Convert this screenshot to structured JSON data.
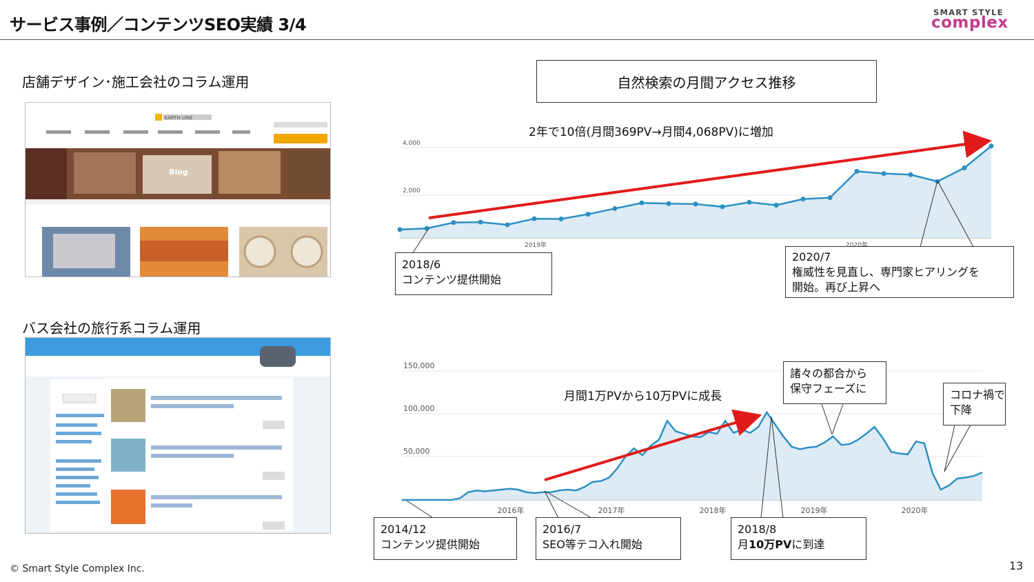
{
  "header": {
    "title": "サービス事例／コンテンツSEO実績 3/4",
    "logo_top": "SMART STYLE",
    "logo_main": "complex"
  },
  "left": {
    "case1_title": "店舗デザイン･施工会社のコラム運用",
    "case1_shot_caption": "Blog",
    "case1_shot_brand": "EARTH LINE",
    "case2_title": "バス会社の旅行系コラム運用"
  },
  "chart1": {
    "header_box": "自然検索の月間アクセス推移",
    "subtitle": "2年で10倍(月間369PV→月間4,068PV)に増加",
    "callout1_line1": "2018/6",
    "callout1_line2": "コンテンツ提供開始",
    "callout2_line1": "2020/7",
    "callout2_line2": "権威性を見直し、専門家ヒアリングを",
    "callout2_line3": "開始。再び上昇へ"
  },
  "chart2": {
    "subtitle": "月間1万PVから10万PVに成長",
    "callout1_line1": "2014/12",
    "callout1_line2": "コンテンツ提供開始",
    "callout2_line1": "2016/7",
    "callout2_line2": "SEO等テコ入れ開始",
    "callout3_line1": "2018/8",
    "callout3_line2_a": "月",
    "callout3_line2_b": "10万PV",
    "callout3_line2_c": "に到達",
    "callout4_line1": "諸々の都合から",
    "callout4_line2": "保守フェーズに",
    "callout5_line1": "コロナ禍で",
    "callout5_line2": "下降"
  },
  "footer": {
    "copyright": "© Smart Style Complex Inc.",
    "page_number": "13"
  },
  "colors": {
    "line": "#2b8fc4",
    "fill": "#dcebf5",
    "arrow": "#e11b1b",
    "logo": "#c23b8f"
  },
  "chart_data": [
    {
      "type": "area",
      "title": "2年で10倍(月間369PV→月間4,068PV)に増加",
      "y_ticks": [
        "4,000",
        "2,000"
      ],
      "x_ticks": [
        "2019年",
        "2020年"
      ],
      "ylim": [
        0,
        4000
      ],
      "series": [
        {
          "values": [
            369,
            420,
            680,
            700,
            580,
            850,
            840,
            1050,
            1300,
            1550,
            1520,
            1500,
            1380,
            1580,
            1450,
            1720,
            1780,
            2950,
            2850,
            2800,
            2500,
            3100,
            4068
          ]
        }
      ]
    },
    {
      "type": "area",
      "title": "月間1万PVから10万PVに成長",
      "y_ticks": [
        "150,000",
        "100,000",
        "50,000"
      ],
      "x_ticks": [
        "2016年",
        "2017年",
        "2018年",
        "2019年",
        "2020年"
      ],
      "ylim": [
        0,
        150000
      ],
      "series": [
        {
          "values": [
            0,
            0,
            0,
            0,
            0,
            0,
            0,
            2000,
            9000,
            11000,
            10000,
            11000,
            12000,
            13000,
            12000,
            9000,
            8000,
            9000,
            9000,
            11000,
            12000,
            11000,
            15000,
            21000,
            22000,
            26000,
            37000,
            51000,
            60000,
            52000,
            63000,
            70000,
            92000,
            80000,
            77000,
            74000,
            73000,
            79000,
            77000,
            92000,
            78000,
            82000,
            78000,
            85000,
            102000,
            88000,
            74000,
            62000,
            59000,
            61000,
            62000,
            67000,
            74000,
            64000,
            65000,
            70000,
            77000,
            85000,
            72000,
            56000,
            54000,
            53000,
            68000,
            66000,
            31000,
            12000,
            17000,
            25000,
            26000,
            28000,
            32000
          ]
        }
      ]
    }
  ]
}
